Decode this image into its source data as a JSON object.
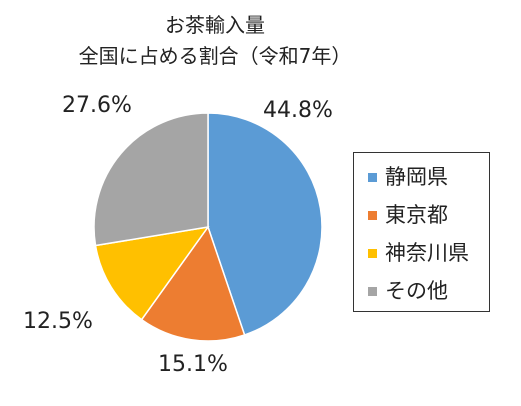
{
  "chart_data": {
    "type": "pie",
    "title_lines": [
      "お茶輸入量",
      "全国に占める割合（令和7年）"
    ],
    "categories": [
      "静岡県",
      "東京都",
      "神奈川県",
      "その他"
    ],
    "values": [
      44.8,
      15.1,
      12.5,
      27.6
    ],
    "value_labels": [
      "44.8%",
      "15.1%",
      "12.5%",
      "27.6%"
    ],
    "colors": [
      "#5B9BD5",
      "#ED7D31",
      "#FFC000",
      "#A5A5A5"
    ],
    "start_angle_deg": 0,
    "direction": "clockwise",
    "legend_position": "right",
    "slice_border_color": "#ffffff"
  }
}
